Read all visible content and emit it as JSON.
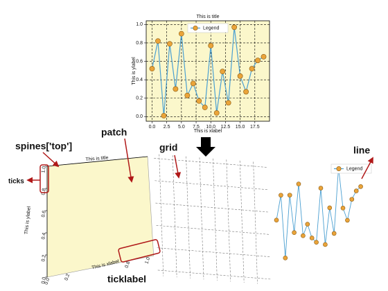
{
  "chart_data": {
    "type": "line",
    "title": "This is title",
    "xlabel": "This is xlabel",
    "ylabel": "This is ylabel",
    "x": [
      0,
      1,
      2,
      3,
      4,
      5,
      6,
      7,
      8,
      9,
      10,
      11,
      12,
      13,
      14,
      15,
      16,
      17,
      18,
      19
    ],
    "series": [
      {
        "name": "Legend",
        "color": "#4a9fd1",
        "marker_color": "#eaa43a",
        "values": [
          0.52,
          0.82,
          0.01,
          0.79,
          0.3,
          0.9,
          0.23,
          0.36,
          0.17,
          0.1,
          0.77,
          0.04,
          0.49,
          0.15,
          0.97,
          0.44,
          0.27,
          0.52,
          0.61,
          0.65
        ]
      }
    ],
    "xlim": [
      -1,
      20
    ],
    "ylim": [
      -0.05,
      1.04
    ],
    "xticks": [
      {
        "value": 0,
        "label": "0.0"
      },
      {
        "value": 2.5,
        "label": "2.5"
      },
      {
        "value": 5,
        "label": "5.0"
      },
      {
        "value": 7.5,
        "label": "7.5"
      },
      {
        "value": 10,
        "label": "10.0"
      },
      {
        "value": 12.5,
        "label": "12.5"
      },
      {
        "value": 15,
        "label": "15.0"
      },
      {
        "value": 17.5,
        "label": "17.5"
      }
    ],
    "yticks": [
      {
        "value": 0,
        "label": "0.0"
      },
      {
        "value": 0.2,
        "label": "0.2"
      },
      {
        "value": 0.4,
        "label": "0.4"
      },
      {
        "value": 0.6,
        "label": "0.6"
      },
      {
        "value": 0.8,
        "label": "0.8"
      },
      {
        "value": 1,
        "label": "1.0"
      }
    ],
    "grid": true,
    "facecolor": "#fbf7cb",
    "legend": "upper center"
  },
  "exploded_xticks": [
    {
      "value": 0,
      "label": "0.0"
    },
    {
      "value": 0.2,
      "label": "0.2"
    },
    {
      "value": 0.8,
      "label": "0.8"
    },
    {
      "value": 1,
      "label": "1.0"
    }
  ],
  "annotations": {
    "spines_top": "spines['top']",
    "patch": "patch",
    "ticks": "ticks",
    "grid": "grid",
    "line": "line",
    "ticklabel": "ticklabel"
  }
}
